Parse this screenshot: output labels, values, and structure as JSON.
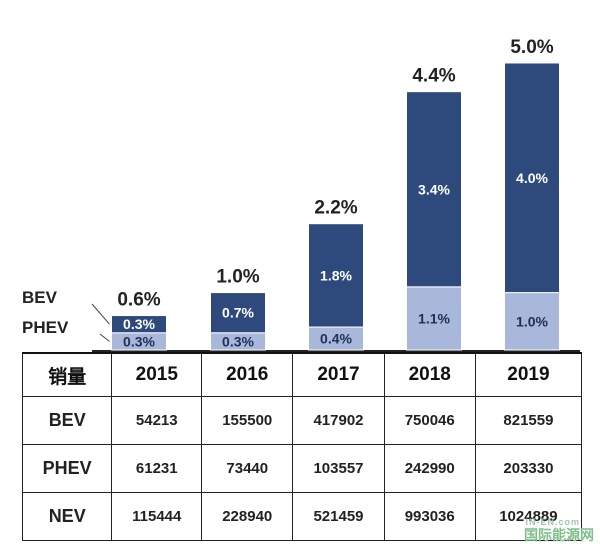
{
  "chart_data": {
    "type": "bar",
    "stacked": true,
    "categories": [
      "2015",
      "2016",
      "2017",
      "2018",
      "2019"
    ],
    "series": [
      {
        "name": "PHEV",
        "values": [
          0.3,
          0.3,
          0.4,
          1.1,
          1.0
        ],
        "labels": [
          "0.3%",
          "0.3%",
          "0.4%",
          "1.1%",
          "1.0%"
        ],
        "color": "#a8b7da"
      },
      {
        "name": "BEV",
        "values": [
          0.3,
          0.7,
          1.8,
          3.4,
          4.0
        ],
        "labels": [
          "0.3%",
          "0.7%",
          "1.8%",
          "3.4%",
          "4.0%"
        ],
        "color": "#2e4a7d"
      }
    ],
    "totals": [
      0.6,
      1.0,
      2.2,
      4.4,
      5.0
    ],
    "total_labels": [
      "0.6%",
      "1.0%",
      "2.2%",
      "4.4%",
      "5.0%"
    ],
    "ylim": [
      0,
      5.4
    ],
    "legend": [
      "BEV",
      "PHEV"
    ],
    "legend_placement": "left"
  },
  "table": {
    "header": [
      "销量",
      "2015",
      "2016",
      "2017",
      "2018",
      "2019"
    ],
    "rows": [
      {
        "label": "BEV",
        "values": [
          "54213",
          "155500",
          "417902",
          "750046",
          "821559"
        ]
      },
      {
        "label": "PHEV",
        "values": [
          "61231",
          "73440",
          "103557",
          "242990",
          "203330"
        ]
      },
      {
        "label": "NEV",
        "values": [
          "115444",
          "228940",
          "521459",
          "993036",
          "1024889"
        ]
      }
    ]
  },
  "watermark": {
    "top": "IN-EN.com",
    "bottom": "国际能源网"
  }
}
